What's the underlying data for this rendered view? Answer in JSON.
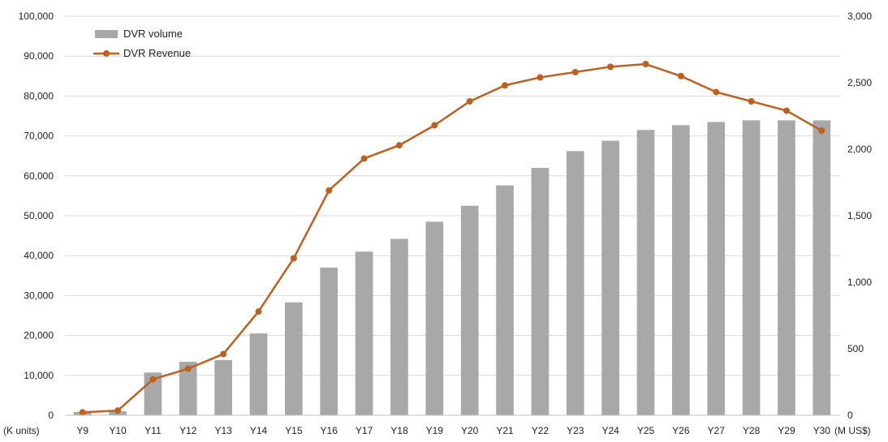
{
  "chart_data": {
    "type": "bar",
    "categories": [
      "Y9",
      "Y10",
      "Y11",
      "Y12",
      "Y13",
      "Y14",
      "Y15",
      "Y16",
      "Y17",
      "Y18",
      "Y19",
      "Y20",
      "Y21",
      "Y22",
      "Y23",
      "Y24",
      "Y25",
      "Y26",
      "Y27",
      "Y28",
      "Y29",
      "Y30"
    ],
    "series": [
      {
        "name": "DVR volume",
        "type": "bar",
        "axis": "left",
        "color": "#a8a8a8",
        "values": [
          800,
          1000,
          10700,
          13400,
          13800,
          20500,
          28300,
          37000,
          41000,
          44200,
          48500,
          52500,
          57600,
          62000,
          66200,
          68800,
          71500,
          72700,
          73500,
          73900,
          73900,
          73900
        ]
      },
      {
        "name": "DVR Revenue",
        "type": "line",
        "axis": "right",
        "color": "#c0601f",
        "values": [
          22,
          35,
          270,
          350,
          460,
          780,
          1180,
          1690,
          1930,
          2030,
          2180,
          2360,
          2480,
          2540,
          2580,
          2620,
          2640,
          2550,
          2430,
          2360,
          2290,
          2140
        ]
      }
    ],
    "y_left": {
      "ticks": [
        "0",
        "10,000",
        "20,000",
        "30,000",
        "40,000",
        "50,000",
        "60,000",
        "70,000",
        "80,000",
        "90,000",
        "100,000"
      ],
      "ylim": [
        0,
        100000
      ],
      "unit_label": "(K units)"
    },
    "y_right": {
      "ticks": [
        "0",
        "500",
        "1,000",
        "1,500",
        "2,000",
        "2,500",
        "3,000"
      ],
      "ylim": [
        0,
        3000
      ],
      "unit_label": "(M US$)"
    },
    "grid": true,
    "legend_position": "top-left"
  }
}
